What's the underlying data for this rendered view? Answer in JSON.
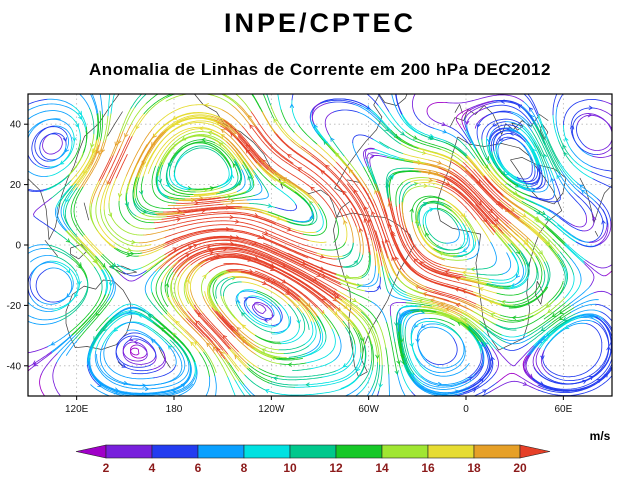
{
  "header": {
    "title": "INPE/CPTEC",
    "subtitle": "Anomalia de Linhas de Corrente em 200 hPa DEC2012"
  },
  "chart_data": {
    "type": "streamline",
    "title": "INPE/CPTEC",
    "subtitle": "Anomalia de Linhas de Corrente em 200 hPa DEC2012",
    "variable": "Anomalia de Linhas de Corrente",
    "level": "200 hPa",
    "period": "DEC2012",
    "x_ticks": [
      {
        "label": "120E",
        "f": 0.0833
      },
      {
        "label": "180",
        "f": 0.25
      },
      {
        "label": "120W",
        "f": 0.4167
      },
      {
        "label": "60W",
        "f": 0.5833
      },
      {
        "label": "0",
        "f": 0.75
      },
      {
        "label": "60E",
        "f": 0.9167
      }
    ],
    "y_ticks": [
      {
        "label": "40",
        "f": 0.1
      },
      {
        "label": "20",
        "f": 0.3
      },
      {
        "label": "0",
        "f": 0.5
      },
      {
        "label": "-20",
        "f": 0.7
      },
      {
        "label": "-40",
        "f": 0.9
      }
    ],
    "colorbar": {
      "units": "m/s",
      "values": [
        2,
        4,
        6,
        8,
        10,
        12,
        14,
        16,
        18,
        20
      ],
      "colors": [
        "#a000c8",
        "#7820dc",
        "#233cf0",
        "#0aa0ff",
        "#00e1e1",
        "#00c88c",
        "#16c828",
        "#a0e632",
        "#e6dc32",
        "#e6a028",
        "#e64028"
      ],
      "label_color": "#8b1a1a"
    },
    "speed_scale": 0.3,
    "seed": 123457,
    "vortices": [
      {
        "x": 0.06,
        "y": 0.18,
        "s": 1.1,
        "r": 0.085
      },
      {
        "x": 0.17,
        "y": 0.4,
        "s": -1.0,
        "r": 0.1
      },
      {
        "x": 0.06,
        "y": 0.62,
        "s": 1.1,
        "r": 0.09
      },
      {
        "x": 0.17,
        "y": 0.82,
        "s": -0.9,
        "r": 0.095
      },
      {
        "x": 0.3,
        "y": 0.24,
        "s": -1.8,
        "r": 0.13
      },
      {
        "x": 0.33,
        "y": 0.58,
        "s": 1.2,
        "r": 0.11
      },
      {
        "x": 0.29,
        "y": 0.86,
        "s": -0.9,
        "r": 0.085
      },
      {
        "x": 0.44,
        "y": 0.13,
        "s": 0.9,
        "r": 0.085
      },
      {
        "x": 0.47,
        "y": 0.4,
        "s": -1.7,
        "r": 0.115
      },
      {
        "x": 0.43,
        "y": 0.73,
        "s": 1.3,
        "r": 0.12
      },
      {
        "x": 0.56,
        "y": 0.22,
        "s": 1.0,
        "r": 0.095
      },
      {
        "x": 0.58,
        "y": 0.55,
        "s": -1.1,
        "r": 0.1
      },
      {
        "x": 0.56,
        "y": 0.86,
        "s": 0.9,
        "r": 0.08
      },
      {
        "x": 0.67,
        "y": 0.13,
        "s": -0.9,
        "r": 0.08
      },
      {
        "x": 0.7,
        "y": 0.44,
        "s": 1.8,
        "r": 0.12
      },
      {
        "x": 0.7,
        "y": 0.78,
        "s": -1.1,
        "r": 0.1
      },
      {
        "x": 0.82,
        "y": 0.25,
        "s": -1.2,
        "r": 0.1
      },
      {
        "x": 0.85,
        "y": 0.6,
        "s": 1.1,
        "r": 0.1
      },
      {
        "x": 0.94,
        "y": 0.14,
        "s": 0.8,
        "r": 0.075
      },
      {
        "x": 0.93,
        "y": 0.46,
        "s": -0.8,
        "r": 0.08
      },
      {
        "x": 0.93,
        "y": 0.8,
        "s": -0.9,
        "r": 0.09
      }
    ]
  }
}
